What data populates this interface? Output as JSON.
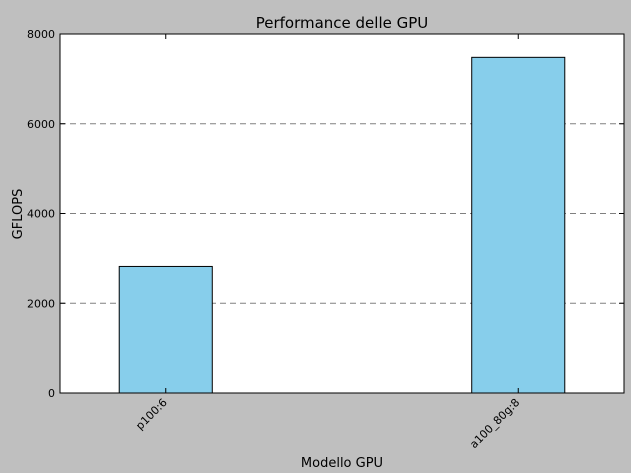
{
  "chart_data": {
    "type": "bar",
    "title": "Performance delle GPU",
    "xlabel": "Modello GPU",
    "ylabel": "GFLOPS",
    "categories": [
      "p100:6",
      "a100_80g:8"
    ],
    "values": [
      2820,
      7480
    ],
    "ylim": [
      0,
      8000
    ],
    "yticks": [
      0,
      2000,
      4000,
      6000,
      8000
    ],
    "grid": "y-dashed",
    "legend": "none",
    "colors": {
      "bar_fill": "#87ceeb",
      "bar_edge": "#000000",
      "figure_background": "#bfbfbf",
      "plot_background": "#ffffff",
      "grid": "#808080"
    }
  }
}
